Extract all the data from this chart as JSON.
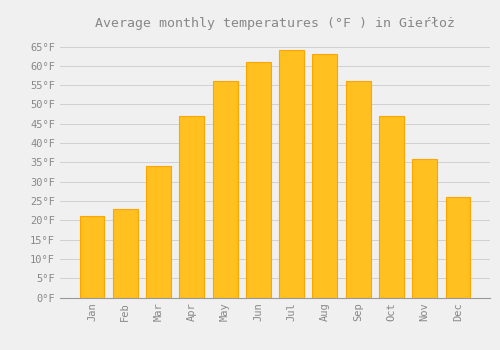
{
  "title": "Average monthly temperatures (°F ) in Gieŕłoż",
  "months": [
    "Jan",
    "Feb",
    "Mar",
    "Apr",
    "May",
    "Jun",
    "Jul",
    "Aug",
    "Sep",
    "Oct",
    "Nov",
    "Dec"
  ],
  "values": [
    21,
    23,
    34,
    47,
    56,
    61,
    64,
    63,
    56,
    47,
    36,
    26
  ],
  "bar_color": "#FFC020",
  "bar_edge_color": "#FFA500",
  "background_color": "#F0F0F0",
  "grid_color": "#CCCCCC",
  "text_color": "#888888",
  "ylim": [
    0,
    68
  ],
  "yticks": [
    0,
    5,
    10,
    15,
    20,
    25,
    30,
    35,
    40,
    45,
    50,
    55,
    60,
    65
  ],
  "title_fontsize": 9.5,
  "tick_fontsize": 7.5,
  "font_family": "monospace"
}
